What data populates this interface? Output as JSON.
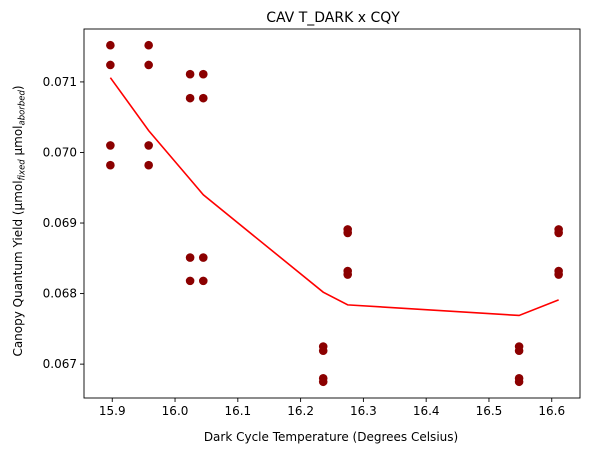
{
  "chart_data": {
    "type": "scatter",
    "title": "CAV T_DARK x CQY",
    "xlabel": "Dark Cycle Temperature (Degrees Celsius)",
    "ylabel": {
      "main": "Canopy Quantum Yield (μmol",
      "sub1": "fixed",
      "mid": " μmol",
      "sub2": "aborbed",
      "end": ")"
    },
    "xlim": [
      15.855,
      16.645
    ],
    "ylim": [
      0.06652,
      0.07175
    ],
    "xticks": [
      15.9,
      16.0,
      16.1,
      16.2,
      16.3,
      16.4,
      16.5,
      16.6
    ],
    "xtick_labels": [
      "15.9",
      "16.0",
      "16.1",
      "16.2",
      "16.3",
      "16.4",
      "16.5",
      "16.6"
    ],
    "yticks": [
      0.067,
      0.068,
      0.069,
      0.07,
      0.071
    ],
    "ytick_labels": [
      "0.067",
      "0.068",
      "0.069",
      "0.070",
      "0.071"
    ],
    "grid": false,
    "colors": {
      "points": "#8b0000",
      "line": "#ff0000",
      "axes": "#000000"
    },
    "series": [
      {
        "kind": "points",
        "x": [
          15.897,
          15.897,
          15.897,
          15.897,
          15.958,
          15.958,
          15.958,
          15.958,
          16.024,
          16.024,
          16.024,
          16.024,
          16.045,
          16.045,
          16.045,
          16.045,
          16.236,
          16.236,
          16.236,
          16.236,
          16.275,
          16.275,
          16.275,
          16.275,
          16.548,
          16.548,
          16.548,
          16.548,
          16.611,
          16.611,
          16.611,
          16.611
        ],
        "y": [
          0.07152,
          0.07124,
          0.0701,
          0.06982,
          0.07152,
          0.07124,
          0.0701,
          0.06982,
          0.07111,
          0.07077,
          0.06851,
          0.06818,
          0.07111,
          0.07077,
          0.06851,
          0.06818,
          0.06725,
          0.06719,
          0.0668,
          0.06675,
          0.06891,
          0.06886,
          0.06832,
          0.06827,
          0.06725,
          0.06719,
          0.0668,
          0.06675,
          0.06891,
          0.06886,
          0.06832,
          0.06827
        ]
      },
      {
        "kind": "line",
        "x": [
          15.897,
          15.958,
          16.024,
          16.045,
          16.236,
          16.275,
          16.548,
          16.611
        ],
        "y": [
          0.07106,
          0.07031,
          0.06962,
          0.0694,
          0.06802,
          0.06784,
          0.06769,
          0.06791
        ]
      }
    ]
  }
}
